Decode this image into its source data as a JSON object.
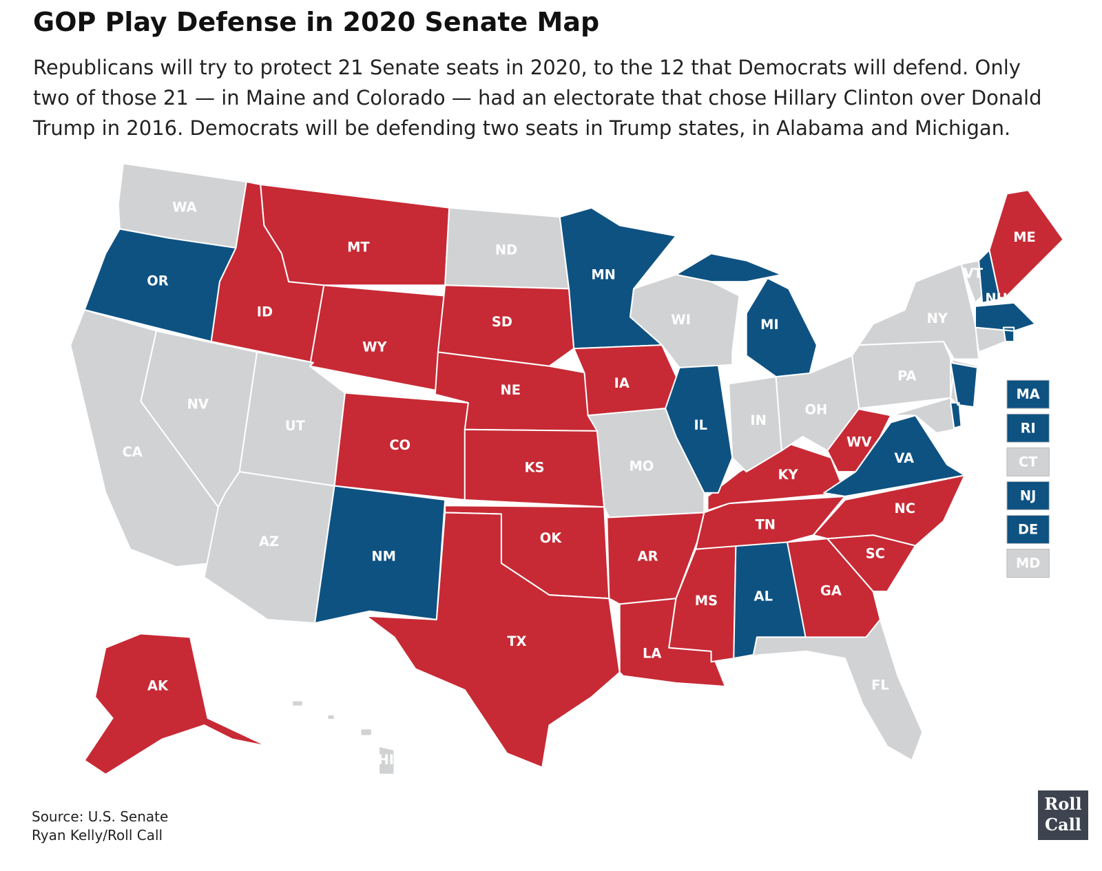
{
  "header": {
    "title": "GOP Play Defense in 2020 Senate Map",
    "subtitle_lines": [
      "Republicans will try to protect 21 Senate seats in 2020, to the 12 that Democrats will defend. Only",
      "two of those 21 — in Maine and Colorado — had an electorate that chose Hillary Clinton over Donald",
      "Trump in 2016. Democrats will be defending two seats in Trump states, in Alabama and Michigan."
    ]
  },
  "map": {
    "stroke": "#ffffff",
    "states": [
      {
        "label": "WA",
        "color": "#d1d2d4"
      },
      {
        "label": "OR",
        "color": "#0e5282"
      },
      {
        "label": "CA",
        "color": "#d1d2d4"
      },
      {
        "label": "NV",
        "color": "#d1d2d4"
      },
      {
        "label": "ID",
        "color": "#c72a35"
      },
      {
        "label": "MT",
        "color": "#c72a35"
      },
      {
        "label": "WY",
        "color": "#c72a35"
      },
      {
        "label": "UT",
        "color": "#d1d2d4"
      },
      {
        "label": "CO",
        "color": "#c72a35"
      },
      {
        "label": "AZ",
        "color": "#d1d2d4"
      },
      {
        "label": "NM",
        "color": "#0e5282"
      },
      {
        "label": "ND",
        "color": "#d1d2d4"
      },
      {
        "label": "SD",
        "color": "#c72a35"
      },
      {
        "label": "NE",
        "color": "#c72a35"
      },
      {
        "label": "KS",
        "color": "#c72a35"
      },
      {
        "label": "OK",
        "color": "#c72a35"
      },
      {
        "label": "TX",
        "color": "#c72a35"
      },
      {
        "label": "MN",
        "color": "#0e5282"
      },
      {
        "label": "IA",
        "color": "#c72a35"
      },
      {
        "label": "MO",
        "color": "#d1d2d4"
      },
      {
        "label": "AR",
        "color": "#c72a35"
      },
      {
        "label": "LA",
        "color": "#c72a35"
      },
      {
        "label": "MS",
        "color": "#c72a35"
      },
      {
        "label": "AL",
        "color": "#0e5282"
      },
      {
        "label": "GA",
        "color": "#c72a35"
      },
      {
        "label": "FL",
        "color": "#d1d2d4"
      },
      {
        "label": "SC",
        "color": "#c72a35"
      },
      {
        "label": "NC",
        "color": "#c72a35"
      },
      {
        "label": "TN",
        "color": "#c72a35"
      },
      {
        "label": "KY",
        "color": "#c72a35"
      },
      {
        "label": "VA",
        "color": "#0e5282"
      },
      {
        "label": "WV",
        "color": "#c72a35"
      },
      {
        "label": "IL",
        "color": "#0e5282"
      },
      {
        "label": "IN",
        "color": "#d1d2d4"
      },
      {
        "label": "OH",
        "color": "#d1d2d4"
      },
      {
        "label": "MI",
        "color": "#0e5282"
      },
      {
        "label": "WI",
        "color": "#d1d2d4"
      },
      {
        "label": "PA",
        "color": "#d1d2d4"
      },
      {
        "label": "NY",
        "color": "#d1d2d4"
      },
      {
        "label": "VT",
        "color": "#d1d2d4"
      },
      {
        "label": "NH",
        "color": "#0e5282"
      },
      {
        "label": "ME",
        "color": "#c72a35"
      },
      {
        "label": "AK",
        "color": "#c72a35"
      },
      {
        "label": "HI",
        "color": "#d1d2d4"
      }
    ],
    "small_states": [
      {
        "label": "MA",
        "color": "#0e5282"
      },
      {
        "label": "RI",
        "color": "#0e5282"
      },
      {
        "label": "CT",
        "color": "#d1d2d4"
      },
      {
        "label": "NJ",
        "color": "#0e5282"
      },
      {
        "label": "DE",
        "color": "#0e5282"
      },
      {
        "label": "MD",
        "color": "#d1d2d4"
      }
    ],
    "small_state_colors": [
      "#0e5282",
      "#0e5282",
      "#d1d2d4",
      "#0e5282",
      "#0e5282",
      "#d1d2d4"
    ]
  },
  "footer": {
    "source": "Source: U.S. Senate",
    "credit": "Ryan Kelly/Roll Call",
    "logo_lines": [
      "Roll",
      "Call"
    ]
  }
}
